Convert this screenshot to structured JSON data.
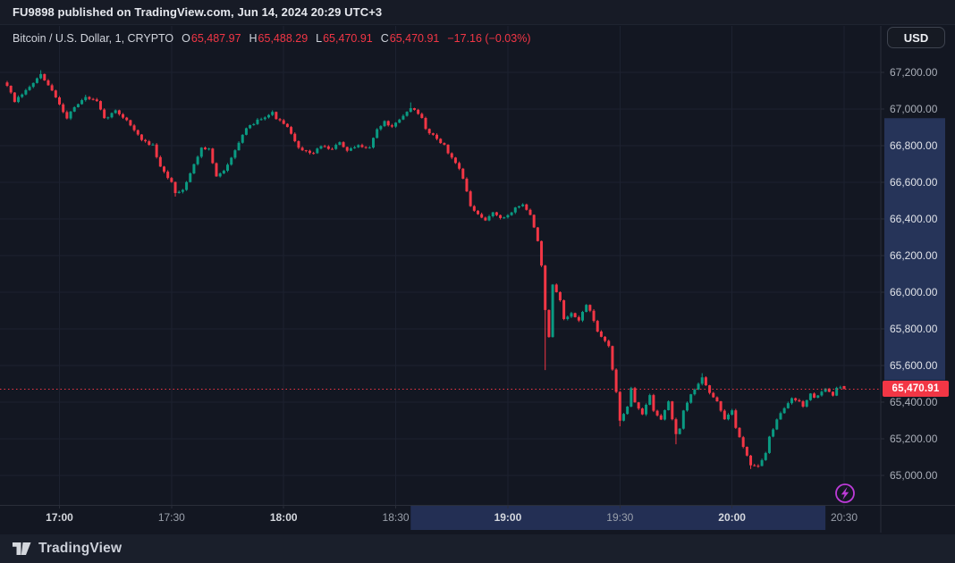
{
  "top_bar": {
    "text": "FU9898 published on TradingView.com, Jun 14, 2024 20:29 UTC+3"
  },
  "header": {
    "symbol": "Bitcoin / U.S. Dollar, 1, CRYPTO",
    "ohlc": [
      {
        "k": "O",
        "v": "65,487.97"
      },
      {
        "k": "H",
        "v": "65,488.29"
      },
      {
        "k": "L",
        "v": "65,470.91"
      },
      {
        "k": "C",
        "v": "65,470.91"
      }
    ],
    "change": "−17.16 (−0.03%)",
    "currency_button": "USD"
  },
  "footer": {
    "brand": "TradingView",
    "logo_icon": "tradingview-mark"
  },
  "icons": {
    "bottom_right": "lightning-boost-icon"
  },
  "colors": {
    "background": "#131722",
    "up": "#0a9a82",
    "down": "#f23645",
    "grid": "#1d2230",
    "axis_border": "#2a2e39",
    "selection_time": "#232f54",
    "selection_price": "#263459",
    "last_price_bg": "#f23645",
    "boost_purple": "#bd3bd8"
  },
  "chart_data": {
    "type": "candlestick",
    "title": "Bitcoin / U.S. Dollar, 1, CRYPTO",
    "interval_minutes": 1,
    "last_price": 65470.91,
    "last_price_label": "65,470.91",
    "last_candle": {
      "open": 65487.97,
      "high": 65488.29,
      "low": 65470.91,
      "close": 65470.91
    },
    "y_axis": {
      "range_top": 67200,
      "range_bottom": 65000,
      "step": 200,
      "ticks": [
        {
          "value": 67200,
          "label": "67,200.00"
        },
        {
          "value": 67000,
          "label": "67,000.00"
        },
        {
          "value": 66800,
          "label": "66,800.00"
        },
        {
          "value": 66600,
          "label": "66,600.00"
        },
        {
          "value": 66400,
          "label": "66,400.00"
        },
        {
          "value": 66200,
          "label": "66,200.00"
        },
        {
          "value": 66000,
          "label": "66,000.00"
        },
        {
          "value": 65800,
          "label": "65,800.00"
        },
        {
          "value": 65600,
          "label": "65,600.00"
        },
        {
          "value": 65400,
          "label": "65,400.00"
        },
        {
          "value": 65200,
          "label": "65,200.00"
        },
        {
          "value": 65000,
          "label": "65,000.00"
        }
      ]
    },
    "x_axis": {
      "first_candle_time": "16:46",
      "ticks": [
        {
          "minute": 14,
          "label": "17:00",
          "major": true
        },
        {
          "minute": 44,
          "label": "17:30",
          "major": false
        },
        {
          "minute": 74,
          "label": "18:00",
          "major": true
        },
        {
          "minute": 104,
          "label": "18:30",
          "major": false
        },
        {
          "minute": 134,
          "label": "19:00",
          "major": true
        },
        {
          "minute": 164,
          "label": "19:30",
          "major": false
        },
        {
          "minute": 194,
          "label": "20:00",
          "major": true
        },
        {
          "minute": 224,
          "label": "20:30",
          "major": false
        }
      ]
    },
    "candle_count": 225,
    "price_path": [
      [
        0,
        67130
      ],
      [
        2,
        67040
      ],
      [
        5,
        67100
      ],
      [
        9,
        67185
      ],
      [
        12,
        67100
      ],
      [
        16,
        66950
      ],
      [
        17,
        66990
      ],
      [
        21,
        67065
      ],
      [
        24,
        67040
      ],
      [
        26,
        66945
      ],
      [
        29,
        66990
      ],
      [
        32,
        66940
      ],
      [
        36,
        66830
      ],
      [
        39,
        66800
      ],
      [
        41,
        66680
      ],
      [
        44,
        66600
      ],
      [
        45,
        66545
      ],
      [
        47,
        66560
      ],
      [
        49,
        66650
      ],
      [
        52,
        66790
      ],
      [
        54,
        66780
      ],
      [
        56,
        66630
      ],
      [
        58,
        66660
      ],
      [
        61,
        66780
      ],
      [
        64,
        66890
      ],
      [
        67,
        66940
      ],
      [
        71,
        66980
      ],
      [
        72,
        66950
      ],
      [
        75,
        66900
      ],
      [
        77,
        66820
      ],
      [
        79,
        66770
      ],
      [
        82,
        66760
      ],
      [
        84,
        66800
      ],
      [
        87,
        66780
      ],
      [
        89,
        66820
      ],
      [
        91,
        66770
      ],
      [
        94,
        66800
      ],
      [
        97,
        66790
      ],
      [
        99,
        66890
      ],
      [
        101,
        66930
      ],
      [
        103,
        66900
      ],
      [
        106,
        66960
      ],
      [
        108,
        67010
      ],
      [
        109,
        66990
      ],
      [
        111,
        66950
      ],
      [
        112,
        66890
      ],
      [
        115,
        66840
      ],
      [
        117,
        66800
      ],
      [
        118,
        66760
      ],
      [
        121,
        66680
      ],
      [
        122,
        66620
      ],
      [
        124,
        66470
      ],
      [
        126,
        66420
      ],
      [
        128,
        66390
      ],
      [
        130,
        66440
      ],
      [
        132,
        66400
      ],
      [
        134,
        66420
      ],
      [
        136,
        66460
      ],
      [
        138,
        66480
      ],
      [
        140,
        66420
      ],
      [
        142,
        66280
      ],
      [
        143,
        66150
      ],
      [
        144,
        65900
      ],
      [
        145,
        65750
      ],
      [
        146,
        66040
      ],
      [
        148,
        65950
      ],
      [
        149,
        65850
      ],
      [
        151,
        65880
      ],
      [
        153,
        65850
      ],
      [
        155,
        65930
      ],
      [
        156,
        65900
      ],
      [
        158,
        65780
      ],
      [
        161,
        65710
      ],
      [
        163,
        65450
      ],
      [
        164,
        65300
      ],
      [
        166,
        65380
      ],
      [
        167,
        65480
      ],
      [
        168,
        65400
      ],
      [
        170,
        65330
      ],
      [
        172,
        65440
      ],
      [
        173,
        65350
      ],
      [
        175,
        65310
      ],
      [
        177,
        65400
      ],
      [
        179,
        65220
      ],
      [
        180,
        65250
      ],
      [
        181,
        65350
      ],
      [
        183,
        65440
      ],
      [
        185,
        65500
      ],
      [
        186,
        65540
      ],
      [
        188,
        65450
      ],
      [
        190,
        65400
      ],
      [
        192,
        65310
      ],
      [
        194,
        65350
      ],
      [
        195,
        65260
      ],
      [
        197,
        65160
      ],
      [
        199,
        65060
      ],
      [
        201,
        65050
      ],
      [
        203,
        65120
      ],
      [
        204,
        65210
      ],
      [
        206,
        65300
      ],
      [
        208,
        65370
      ],
      [
        210,
        65420
      ],
      [
        212,
        65410
      ],
      [
        213,
        65380
      ],
      [
        215,
        65450
      ],
      [
        216,
        65420
      ],
      [
        218,
        65460
      ],
      [
        219,
        65470
      ],
      [
        221,
        65440
      ],
      [
        222,
        65480
      ],
      [
        224,
        65470.91
      ]
    ],
    "wick_highs": [
      [
        9,
        67212
      ],
      [
        21,
        67078
      ],
      [
        108,
        67036
      ],
      [
        186,
        65558
      ]
    ],
    "wick_lows": [
      [
        45,
        66522
      ],
      [
        144,
        65575
      ],
      [
        164,
        65268
      ],
      [
        179,
        65170
      ],
      [
        199,
        65035
      ],
      [
        201,
        65042
      ]
    ],
    "selection": {
      "time_start_minute": 108,
      "time_end_minute": 219,
      "price_top": 66950,
      "price_bottom": 65520
    }
  }
}
